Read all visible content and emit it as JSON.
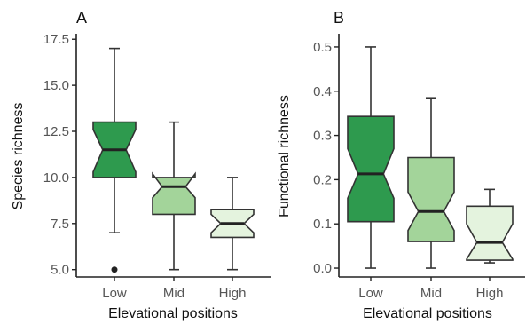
{
  "chart_data": [
    {
      "type": "boxplot",
      "panel_label": "A",
      "xlabel": "Elevational positions",
      "ylabel": "Species richness",
      "categories": [
        "Low",
        "Mid",
        "High"
      ],
      "ylim": [
        4.6,
        17.8
      ],
      "yticks": [
        5.0,
        7.5,
        10.0,
        12.5,
        15.0,
        17.5
      ],
      "ytick_labels": [
        "5.0",
        "7.5",
        "10.0",
        "12.5",
        "15.0",
        "17.5"
      ],
      "notched": true,
      "boxes": [
        {
          "category": "Low",
          "whisker_low": 7,
          "q1": 10,
          "notch_low": 10.3,
          "median": 11.5,
          "notch_high": 12.6,
          "q3": 13,
          "whisker_high": 17,
          "outliers": [
            5
          ],
          "color": "#2E9A4E"
        },
        {
          "category": "Mid",
          "whisker_low": 5,
          "q1": 8,
          "notch_low": 8.9,
          "median": 9.5,
          "notch_high": 10.2,
          "q3": 10,
          "whisker_high": 13,
          "outliers": [],
          "color": "#A3D49A"
        },
        {
          "category": "High",
          "whisker_low": 5,
          "q1": 6.75,
          "notch_low": 7.0,
          "median": 7.5,
          "notch_high": 8.0,
          "q3": 8.25,
          "whisker_high": 10,
          "outliers": [],
          "color": "#E4F3DE"
        }
      ]
    },
    {
      "type": "boxplot",
      "panel_label": "B",
      "xlabel": "Elevational positions",
      "ylabel": "Functional richness",
      "categories": [
        "Low",
        "Mid",
        "High"
      ],
      "ylim": [
        -0.02,
        0.53
      ],
      "yticks": [
        0.0,
        0.1,
        0.2,
        0.3,
        0.4,
        0.5
      ],
      "ytick_labels": [
        "0.0",
        "0.1",
        "0.2",
        "0.3",
        "0.4",
        "0.5"
      ],
      "notched": true,
      "boxes": [
        {
          "category": "Low",
          "whisker_low": 0.0,
          "q1": 0.105,
          "notch_low": 0.158,
          "median": 0.213,
          "notch_high": 0.27,
          "q3": 0.343,
          "whisker_high": 0.5,
          "outliers": [],
          "color": "#2E9A4E"
        },
        {
          "category": "Mid",
          "whisker_low": 0.0,
          "q1": 0.06,
          "notch_low": 0.085,
          "median": 0.128,
          "notch_high": 0.172,
          "q3": 0.25,
          "whisker_high": 0.385,
          "outliers": [],
          "color": "#A3D49A"
        },
        {
          "category": "High",
          "whisker_low": 0.012,
          "q1": 0.018,
          "notch_low": 0.02,
          "median": 0.058,
          "notch_high": 0.1,
          "q3": 0.14,
          "whisker_high": 0.178,
          "outliers": [],
          "color": "#E4F3DE"
        }
      ]
    }
  ],
  "styles": {
    "stroke_color": "#333333",
    "axis_color": "#222222"
  }
}
